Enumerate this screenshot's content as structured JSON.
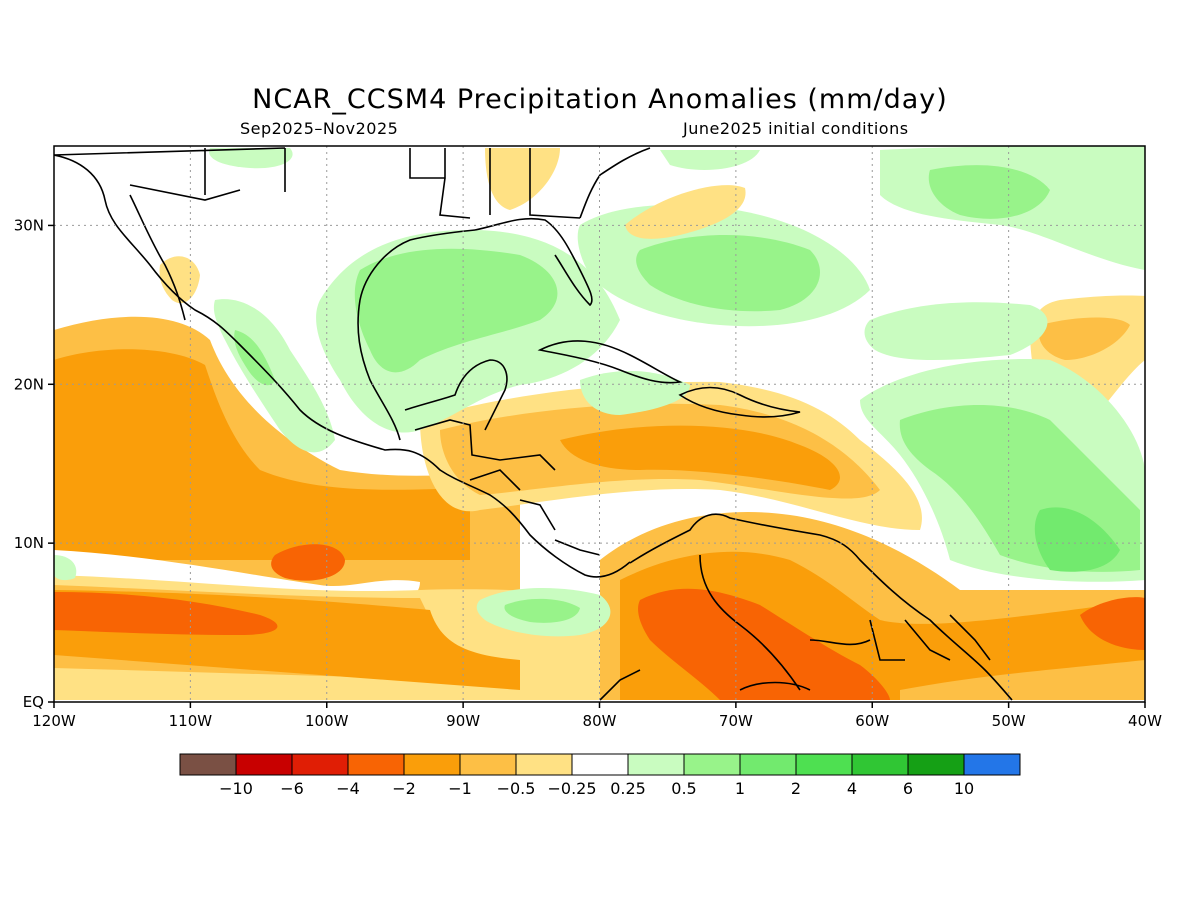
{
  "title": "NCAR_CCSM4 Precipitation Anomalies (mm/day)",
  "subtitle_left": "Sep2025–Nov2025",
  "subtitle_right": "June2025 initial conditions",
  "map": {
    "lon_range": [
      -120,
      -40
    ],
    "lat_range": [
      0,
      35
    ],
    "lon_ticks": [
      {
        "v": -120,
        "label": "120W"
      },
      {
        "v": -110,
        "label": "110W"
      },
      {
        "v": -100,
        "label": "100W"
      },
      {
        "v": -90,
        "label": "90W"
      },
      {
        "v": -80,
        "label": "80W"
      },
      {
        "v": -70,
        "label": "70W"
      },
      {
        "v": -60,
        "label": "60W"
      },
      {
        "v": -50,
        "label": "50W"
      },
      {
        "v": -40,
        "label": "40W"
      }
    ],
    "lat_ticks": [
      {
        "v": 0,
        "label": "EQ"
      },
      {
        "v": 10,
        "label": "10N"
      },
      {
        "v": 20,
        "label": "20N"
      },
      {
        "v": 30,
        "label": "30N"
      }
    ]
  },
  "colorbar": {
    "colors": [
      "#7a5044",
      "#c80000",
      "#e01e05",
      "#f86404",
      "#fa9e0a",
      "#fdbf45",
      "#ffe184",
      "#ffffff",
      "#c9fcc0",
      "#98f38a",
      "#72ea6e",
      "#4ee051",
      "#30c634",
      "#15a015",
      "#2376e8"
    ],
    "labels": [
      "−10",
      "−6",
      "−4",
      "−2",
      "−1",
      "−0.5",
      "−0.25",
      "0.25",
      "0.5",
      "1",
      "2",
      "4",
      "6",
      "10"
    ]
  },
  "colors": {
    "dry_darkorange": "#f86404",
    "dry_orange": "#fa9e0a",
    "dry_lightorange": "#fdbf45",
    "dry_yellow": "#ffe184",
    "wet_pale": "#c9fcc0",
    "wet_light": "#98f38a",
    "wet_mid": "#72ea6e"
  }
}
